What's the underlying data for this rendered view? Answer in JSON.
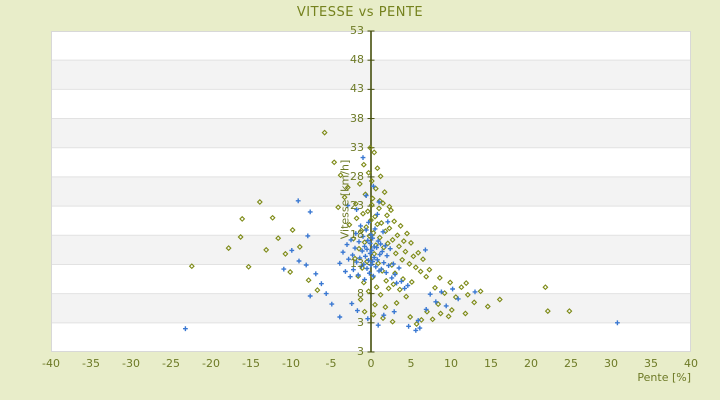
{
  "window": {
    "title": "VITESSE vs PENTE"
  },
  "colors": {
    "background": "#e8edc9",
    "plot_background": "#ffffff",
    "band_fill": "#f3f3f3",
    "grid_line": "#e2e2e2",
    "plot_border": "#d8d8d8",
    "axis_line": "#46500e",
    "label_text": "#6d7a26",
    "title_text": "#75821e",
    "series_blue": "#3a78d2",
    "series_olive": "#7d8a16"
  },
  "chart_data": {
    "type": "scatter",
    "title": "VITESSE vs PENTE",
    "xlabel": "Pente [%]",
    "ylabel": "Vitesse [km/h]",
    "xlim": [
      -40,
      40
    ],
    "xticks": [
      -40,
      -35,
      -30,
      -25,
      -20,
      -15,
      -10,
      -5,
      0,
      5,
      10,
      15,
      20,
      25,
      30,
      35,
      40
    ],
    "ymax": 53,
    "units_per_ytick": 5,
    "ytick_labels": [
      "53",
      "48",
      "43",
      "38",
      "33",
      "28",
      "23",
      "18",
      "13",
      "8",
      "3",
      "3"
    ],
    "grid": "horizontal-bands-alternating",
    "legend": "none",
    "series": [
      {
        "name": "pente-vitesse-olive",
        "marker": "diamond",
        "color": "#7d8a16",
        "points": [
          [
            -5.8,
            35.6
          ],
          [
            -0.1,
            33.0
          ],
          [
            0.4,
            32.2
          ],
          [
            -0.9,
            30.1
          ],
          [
            0.8,
            29.5
          ],
          [
            -0.3,
            28.7
          ],
          [
            1.2,
            28.1
          ],
          [
            0.1,
            27.3
          ],
          [
            -1.4,
            26.8
          ],
          [
            0.6,
            26.0
          ],
          [
            1.7,
            25.4
          ],
          [
            -0.7,
            25.0
          ],
          [
            0.2,
            24.3
          ],
          [
            1.1,
            23.9
          ],
          [
            -1.9,
            23.4
          ],
          [
            2.3,
            22.9
          ],
          [
            -4.6,
            30.5
          ],
          [
            -3.8,
            28.3
          ],
          [
            -2.9,
            26.2
          ],
          [
            -3.3,
            24.5
          ],
          [
            -4.1,
            22.8
          ],
          [
            -2.7,
            19.8
          ],
          [
            -2.2,
            17.4
          ],
          [
            -1.8,
            20.9
          ],
          [
            -1.5,
            15.7
          ],
          [
            -1.2,
            18.8
          ],
          [
            -1.0,
            21.7
          ],
          [
            -0.8,
            16.8
          ],
          [
            -0.6,
            19.4
          ],
          [
            -0.4,
            22.1
          ],
          [
            -0.2,
            17.9
          ],
          [
            0.0,
            20.6
          ],
          [
            0.1,
            23.2
          ],
          [
            0.3,
            18.4
          ],
          [
            0.5,
            21.2
          ],
          [
            0.6,
            16.3
          ],
          [
            0.8,
            19.9
          ],
          [
            1.0,
            22.6
          ],
          [
            1.1,
            17.6
          ],
          [
            1.3,
            20.1
          ],
          [
            1.5,
            23.5
          ],
          [
            1.6,
            15.9
          ],
          [
            1.8,
            18.7
          ],
          [
            2.0,
            21.4
          ],
          [
            2.1,
            16.6
          ],
          [
            2.3,
            19.2
          ],
          [
            2.5,
            22.3
          ],
          [
            2.7,
            17.2
          ],
          [
            2.9,
            20.4
          ],
          [
            3.1,
            14.9
          ],
          [
            3.3,
            18.0
          ],
          [
            3.5,
            16.1
          ],
          [
            3.7,
            19.6
          ],
          [
            3.9,
            13.8
          ],
          [
            4.1,
            17.0
          ],
          [
            4.3,
            15.2
          ],
          [
            4.5,
            18.3
          ],
          [
            4.8,
            13.1
          ],
          [
            5.0,
            16.7
          ],
          [
            5.3,
            14.4
          ],
          [
            5.6,
            12.5
          ],
          [
            5.9,
            15.0
          ],
          [
            6.2,
            11.8
          ],
          [
            6.5,
            13.9
          ],
          [
            6.9,
            10.9
          ],
          [
            7.3,
            12.1
          ],
          [
            0.4,
            14.8
          ],
          [
            0.9,
            13.2
          ],
          [
            1.4,
            11.9
          ],
          [
            -0.5,
            13.5
          ],
          [
            -1.1,
            12.4
          ],
          [
            2.6,
            12.9
          ],
          [
            3.0,
            11.5
          ],
          [
            -2.0,
            14.0
          ],
          [
            -1.6,
            11.0
          ],
          [
            4.0,
            10.5
          ],
          [
            1.9,
            10.2
          ],
          [
            0.2,
            10.8
          ],
          [
            -0.9,
            9.9
          ],
          [
            2.8,
            9.6
          ],
          [
            5.1,
            10.0
          ],
          [
            0.7,
            9.1
          ],
          [
            3.6,
            8.7
          ],
          [
            -0.3,
            8.4
          ],
          [
            1.2,
            7.8
          ],
          [
            2.2,
            8.9
          ],
          [
            4.4,
            7.5
          ],
          [
            -1.3,
            7.0
          ],
          [
            0.5,
            6.1
          ],
          [
            1.8,
            5.7
          ],
          [
            3.2,
            6.4
          ],
          [
            -16.3,
            17.7
          ],
          [
            -17.8,
            15.8
          ],
          [
            -22.4,
            12.7
          ],
          [
            -15.3,
            12.6
          ],
          [
            -13.9,
            23.7
          ],
          [
            -12.3,
            21.0
          ],
          [
            -16.1,
            20.8
          ],
          [
            -11.6,
            17.5
          ],
          [
            -10.7,
            14.8
          ],
          [
            -9.8,
            18.9
          ],
          [
            -8.9,
            16.0
          ],
          [
            -13.1,
            15.5
          ],
          [
            -10.1,
            11.7
          ],
          [
            -7.8,
            10.3
          ],
          [
            -6.7,
            8.6
          ],
          [
            8.0,
            9.0
          ],
          [
            8.6,
            10.7
          ],
          [
            9.2,
            8.1
          ],
          [
            9.9,
            9.9
          ],
          [
            10.6,
            7.4
          ],
          [
            11.3,
            9.1
          ],
          [
            12.1,
            7.8
          ],
          [
            12.9,
            6.5
          ],
          [
            13.7,
            8.4
          ],
          [
            14.6,
            5.8
          ],
          [
            10.1,
            5.2
          ],
          [
            11.8,
            4.6
          ],
          [
            22.1,
            5.0
          ],
          [
            24.8,
            5.0
          ],
          [
            8.4,
            6.2
          ],
          [
            9.7,
            4.1
          ],
          [
            7.7,
            3.6
          ],
          [
            21.8,
            9.1
          ],
          [
            11.9,
            9.8
          ],
          [
            16.1,
            7.0
          ],
          [
            0.3,
            4.4
          ],
          [
            1.5,
            3.8
          ],
          [
            2.7,
            3.2
          ],
          [
            4.9,
            4.0
          ],
          [
            6.3,
            3.5
          ],
          [
            -0.8,
            4.9
          ],
          [
            5.7,
            2.8
          ],
          [
            7.0,
            4.9
          ],
          [
            8.7,
            4.6
          ]
        ]
      },
      {
        "name": "pente-vitesse-blue",
        "marker": "plus",
        "color": "#3a78d2",
        "points": [
          [
            -3.9,
            13.2
          ],
          [
            -3.5,
            15.1
          ],
          [
            -3.2,
            11.8
          ],
          [
            -3.0,
            16.4
          ],
          [
            -2.8,
            13.9
          ],
          [
            -2.6,
            10.9
          ],
          [
            -2.5,
            17.2
          ],
          [
            -2.3,
            14.6
          ],
          [
            -2.2,
            12.1
          ],
          [
            -2.0,
            15.8
          ],
          [
            -1.9,
            18.3
          ],
          [
            -1.8,
            13.4
          ],
          [
            -1.6,
            11.2
          ],
          [
            -1.5,
            16.9
          ],
          [
            -1.4,
            14.1
          ],
          [
            -1.3,
            19.6
          ],
          [
            -1.2,
            12.7
          ],
          [
            -1.1,
            15.3
          ],
          [
            -1.0,
            17.8
          ],
          [
            -0.9,
            13.0
          ],
          [
            -0.8,
            10.4
          ],
          [
            -0.8,
            16.1
          ],
          [
            -0.7,
            14.4
          ],
          [
            -0.6,
            18.9
          ],
          [
            -0.5,
            12.3
          ],
          [
            -0.5,
            15.6
          ],
          [
            -0.4,
            17.1
          ],
          [
            -0.3,
            13.7
          ],
          [
            -0.3,
            20.2
          ],
          [
            -0.2,
            11.5
          ],
          [
            -0.1,
            16.6
          ],
          [
            -0.1,
            14.9
          ],
          [
            0.0,
            12.9
          ],
          [
            0.0,
            18.1
          ],
          [
            0.1,
            15.4
          ],
          [
            0.2,
            13.5
          ],
          [
            0.2,
            17.5
          ],
          [
            0.3,
            11.0
          ],
          [
            0.4,
            16.0
          ],
          [
            0.4,
            14.2
          ],
          [
            0.5,
            19.1
          ],
          [
            0.6,
            12.6
          ],
          [
            0.7,
            15.9
          ],
          [
            0.8,
            13.8
          ],
          [
            0.9,
            17.0
          ],
          [
            1.0,
            11.9
          ],
          [
            1.1,
            14.7
          ],
          [
            1.2,
            16.5
          ],
          [
            1.3,
            12.2
          ],
          [
            1.4,
            15.2
          ],
          [
            1.5,
            18.6
          ],
          [
            1.6,
            13.3
          ],
          [
            1.8,
            16.2
          ],
          [
            1.9,
            11.6
          ],
          [
            2.0,
            14.5
          ],
          [
            2.2,
            12.8
          ],
          [
            2.4,
            15.7
          ],
          [
            2.6,
            10.7
          ],
          [
            2.8,
            13.1
          ],
          [
            3.0,
            11.3
          ],
          [
            3.2,
            9.8
          ],
          [
            3.5,
            12.4
          ],
          [
            3.8,
            10.1
          ],
          [
            4.2,
            8.9
          ],
          [
            -1.0,
            31.3
          ],
          [
            0.3,
            26.4
          ],
          [
            -0.6,
            24.8
          ],
          [
            1.0,
            23.7
          ],
          [
            -1.8,
            22.4
          ],
          [
            0.8,
            21.6
          ],
          [
            -2.9,
            23.1
          ],
          [
            2.1,
            20.3
          ],
          [
            -23.2,
            2.0
          ],
          [
            -9.1,
            23.9
          ],
          [
            -7.6,
            22.0
          ],
          [
            -7.9,
            17.9
          ],
          [
            -9.9,
            15.4
          ],
          [
            -9.0,
            13.6
          ],
          [
            -10.9,
            12.2
          ],
          [
            -8.1,
            12.9
          ],
          [
            -6.9,
            11.4
          ],
          [
            -6.2,
            9.7
          ],
          [
            -5.6,
            8.0
          ],
          [
            -7.6,
            7.6
          ],
          [
            -4.9,
            6.2
          ],
          [
            -3.9,
            4.0
          ],
          [
            5.6,
            1.7
          ],
          [
            6.1,
            2.1
          ],
          [
            6.9,
            5.3
          ],
          [
            7.4,
            7.9
          ],
          [
            8.1,
            6.6
          ],
          [
            8.8,
            8.3
          ],
          [
            9.4,
            5.9
          ],
          [
            10.2,
            8.8
          ],
          [
            10.9,
            7.1
          ],
          [
            13.0,
            8.3
          ],
          [
            30.8,
            3.0
          ],
          [
            5.9,
            3.4
          ],
          [
            4.7,
            2.4
          ],
          [
            6.8,
            15.5
          ],
          [
            4.6,
            9.4
          ],
          [
            -0.4,
            3.7
          ],
          [
            1.6,
            4.3
          ],
          [
            0.9,
            2.6
          ],
          [
            -1.7,
            5.1
          ],
          [
            2.9,
            4.9
          ],
          [
            -2.4,
            6.3
          ]
        ]
      }
    ]
  }
}
